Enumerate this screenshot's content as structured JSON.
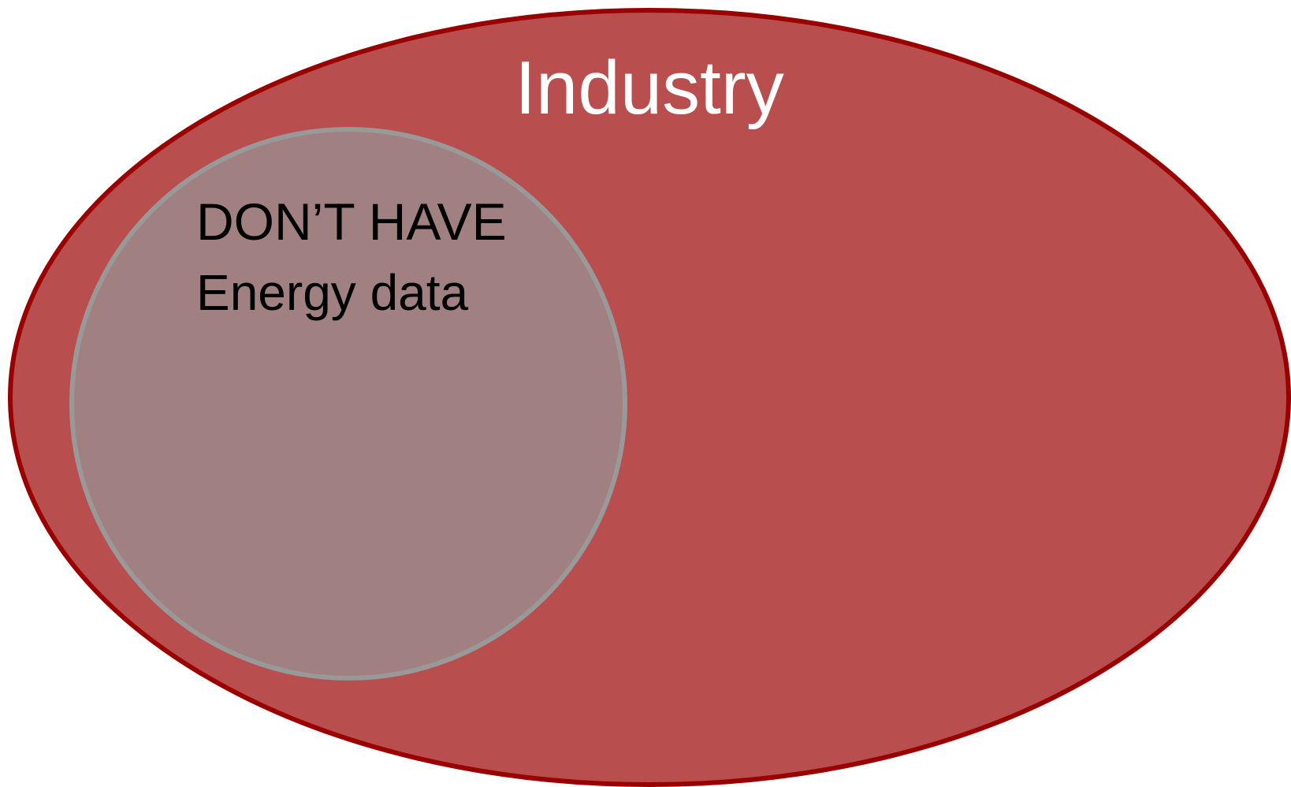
{
  "diagram": {
    "outer": {
      "label": "Industry"
    },
    "inner": {
      "title": "DON’T HAVE",
      "label": "Energy data"
    }
  }
}
